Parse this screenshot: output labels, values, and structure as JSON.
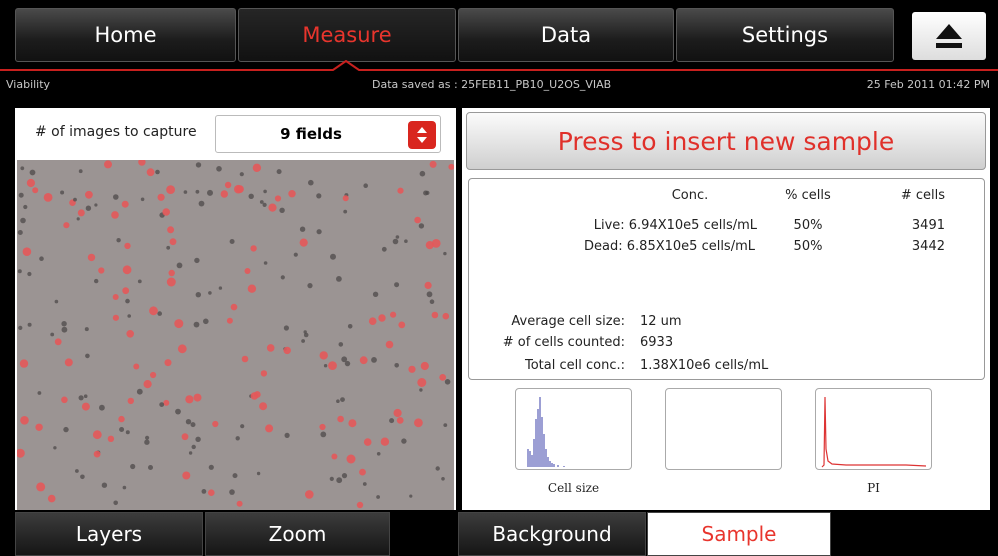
{
  "tabs": [
    "Home",
    "Measure",
    "Data",
    "Settings"
  ],
  "status": {
    "mode": "Viability",
    "saved": "Data saved as : 25FEB11_PB10_U2OS_VIAB",
    "datetime": "25 Feb 2011 01:42 PM"
  },
  "capture": {
    "label": "# of images to capture",
    "value": "9 fields"
  },
  "insert_button": "Press to insert new sample",
  "results": {
    "columns": [
      "Conc.",
      "% cells",
      "# cells"
    ],
    "rows": [
      [
        "Live: 6.94X10e5 cells/mL",
        "50%",
        "3491"
      ],
      [
        "Dead: 6.85X10e5 cells/mL",
        "50%",
        "3442"
      ]
    ],
    "summary": [
      [
        "Average cell size:",
        "12 um"
      ],
      [
        "# of cells counted:",
        "6933"
      ],
      [
        "Total cell conc.:",
        "1.38X10e6 cells/mL"
      ]
    ]
  },
  "histograms": {
    "cell_size": "Cell size",
    "pi": "PI"
  },
  "bottom_tabs": [
    "Layers",
    "Zoom",
    "Background",
    "Sample"
  ]
}
